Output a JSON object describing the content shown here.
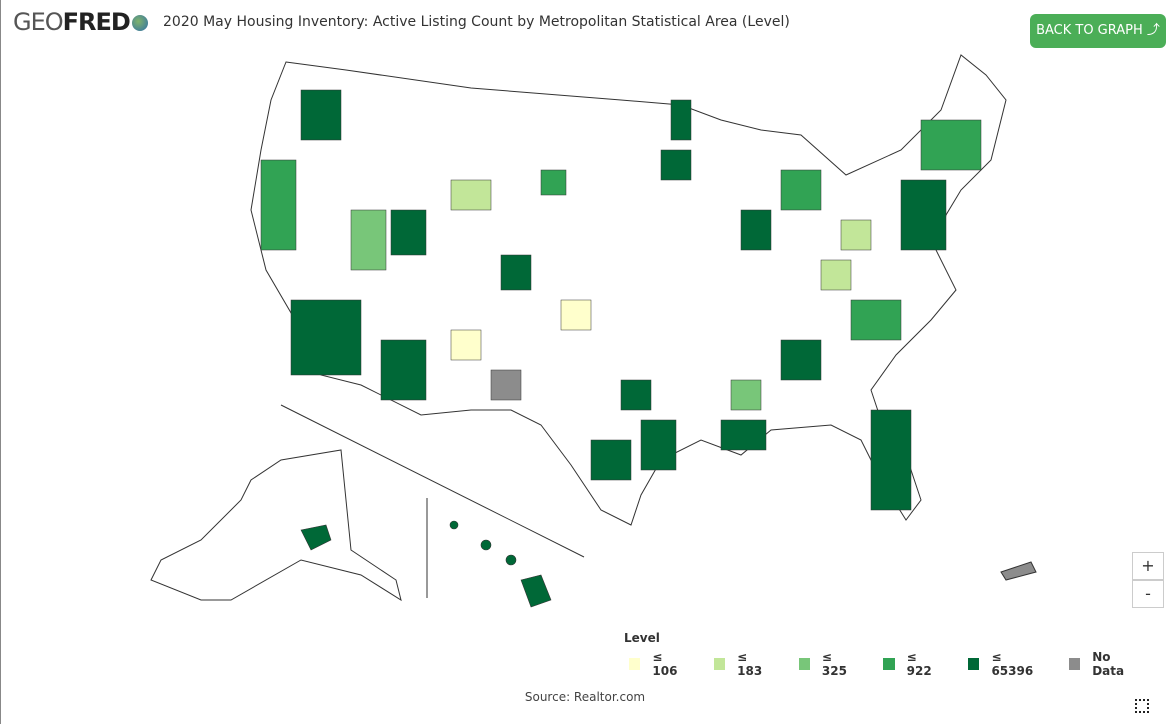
{
  "header": {
    "logo_light": "GEO",
    "logo_bold": "FRED",
    "title": "2020 May Housing Inventory: Active Listing Count by Metropolitan Statistical Area (Level)",
    "button": "BACK TO GRAPH"
  },
  "legend": {
    "title": "Level",
    "items": [
      {
        "label": "≤ 106",
        "color": "#ffffcc"
      },
      {
        "label": "≤ 183",
        "color": "#c2e699"
      },
      {
        "label": "≤ 325",
        "color": "#78c679"
      },
      {
        "label": "≤ 922",
        "color": "#31a354"
      },
      {
        "label": "≤ 65396",
        "color": "#006837"
      },
      {
        "label": "No Data",
        "color": "#8c8c8c"
      }
    ]
  },
  "source": "Source: Realtor.com",
  "zoom": {
    "in": "+",
    "out": "-"
  }
}
